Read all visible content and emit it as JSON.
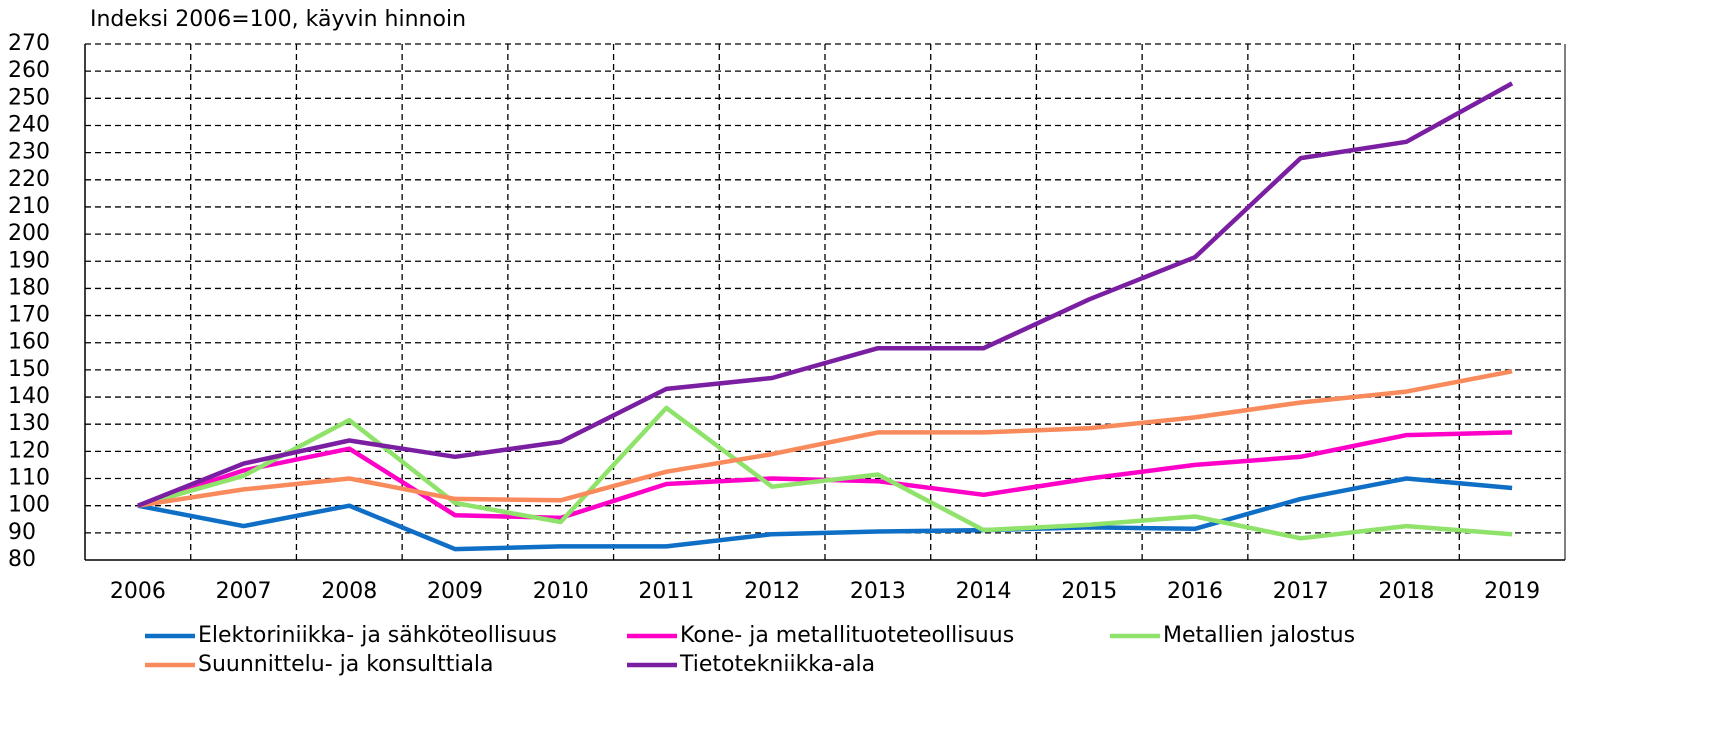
{
  "chart_data": {
    "type": "line",
    "ylabel": "Indeksi 2006=100, käyvin hinnoin",
    "categories": [
      "2006",
      "2007",
      "2008",
      "2009",
      "2010",
      "2011",
      "2012",
      "2013",
      "2014",
      "2015",
      "2016",
      "2017",
      "2018",
      "2019"
    ],
    "series": [
      {
        "name": "Elektoriniikka- ja sähköteollisuus",
        "color": "#0f6fc6",
        "values": [
          100,
          92.5,
          100,
          84,
          85,
          85,
          89.5,
          90.5,
          91,
          92,
          91.5,
          102.5,
          110,
          106.5
        ]
      },
      {
        "name": "Kone- ja metallituoteteollisuus",
        "color": "#ff00c8",
        "values": [
          100,
          113,
          121,
          96.5,
          95.5,
          108,
          110,
          109,
          104,
          110,
          115,
          118,
          126,
          127
        ]
      },
      {
        "name": "Metallien jalostus",
        "color": "#8fe36b",
        "values": [
          100,
          111,
          131.5,
          101,
          94,
          136,
          107,
          111.5,
          91,
          93,
          96,
          88,
          92.5,
          89.5
        ]
      },
      {
        "name": "Suunnittelu- ja konsulttiala",
        "color": "#f98a5b",
        "values": [
          100,
          106,
          110,
          102.5,
          102,
          112.5,
          119,
          127,
          127,
          128.5,
          132.5,
          138,
          142,
          149.5
        ]
      },
      {
        "name": "Tietotekniikka-ala",
        "color": "#7b1fa2",
        "values": [
          100,
          115.5,
          124,
          118,
          123.5,
          143,
          147,
          158,
          158,
          176,
          191.5,
          228,
          234,
          255.5
        ]
      }
    ],
    "ylim": [
      80,
      270
    ],
    "yticks": [
      80,
      90,
      100,
      110,
      120,
      130,
      140,
      150,
      160,
      170,
      180,
      190,
      200,
      210,
      220,
      230,
      240,
      250,
      260,
      270
    ],
    "grid": true,
    "legend": "bottom"
  }
}
